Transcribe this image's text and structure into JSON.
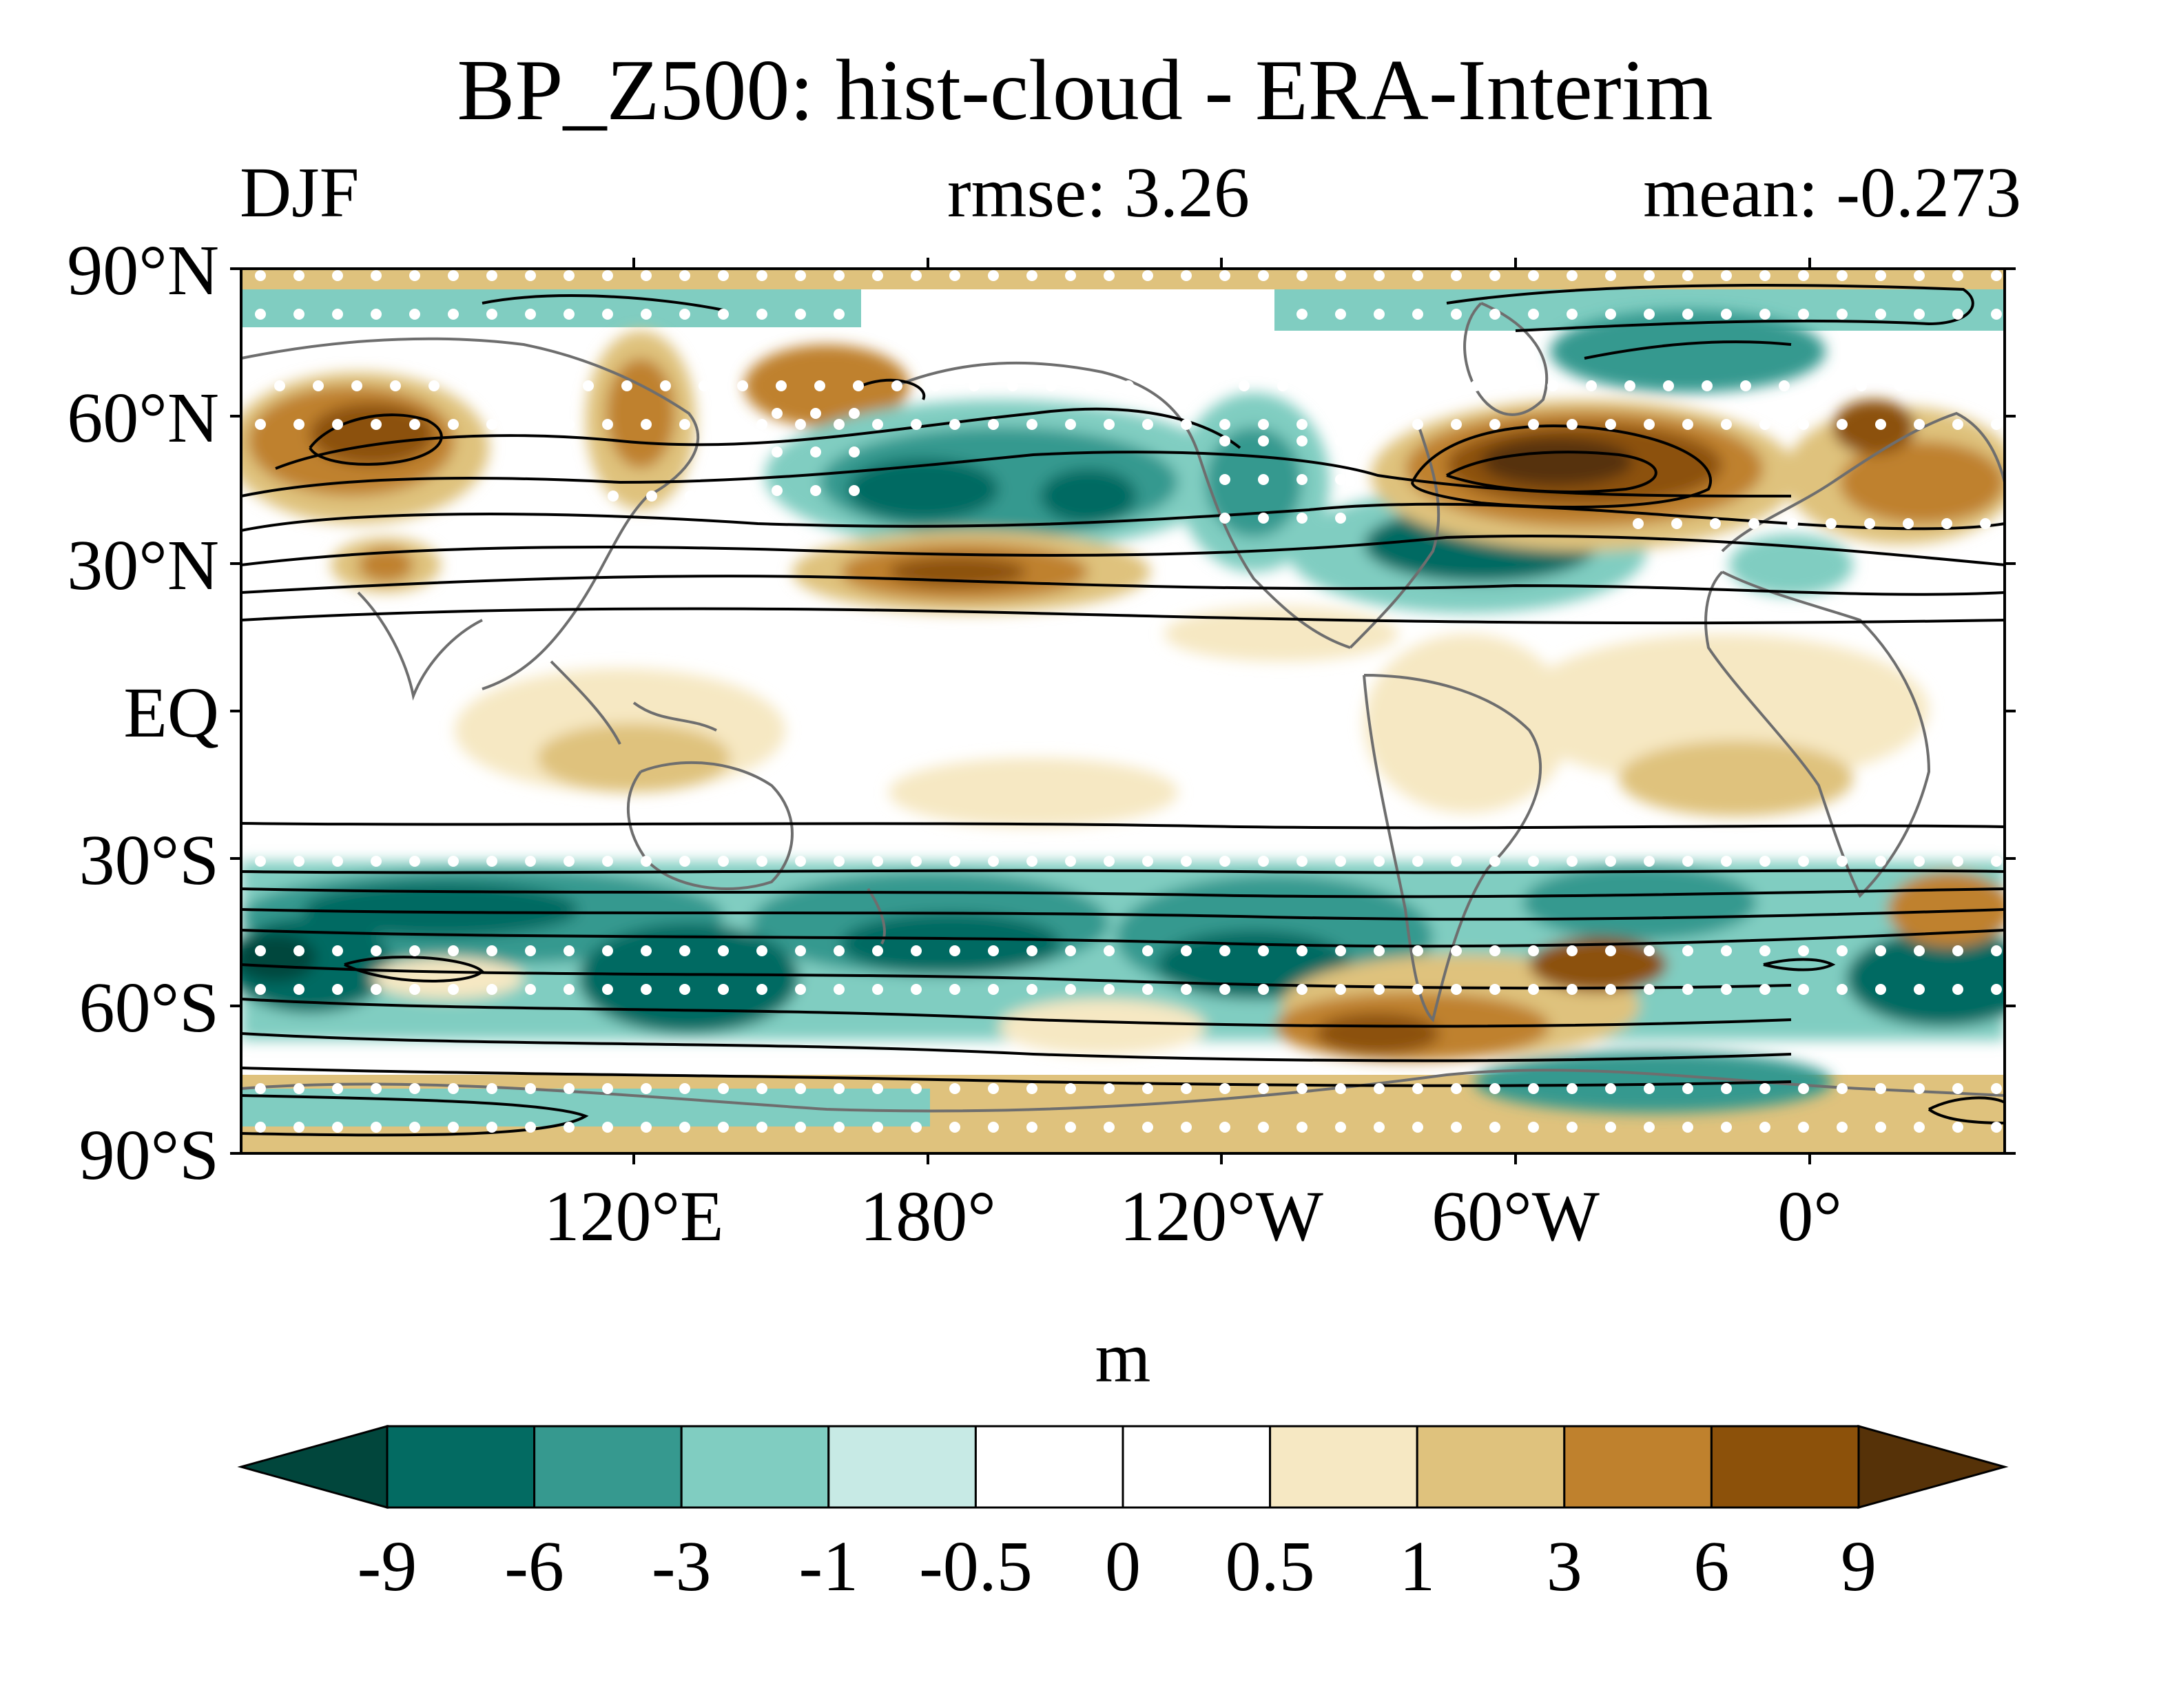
{
  "title": "BP_Z500: hist-cloud - ERA-Interim",
  "season": "DJF",
  "rmse_text": "rmse: 3.26",
  "mean_text": "mean: -0.273",
  "map": {
    "lat_labels": [
      "90°N",
      "60°N",
      "30°N",
      "EQ",
      "30°S",
      "60°S",
      "90°S"
    ],
    "lon_labels": [
      "120°E",
      "180°",
      "120°W",
      "60°W",
      "0°"
    ],
    "projection": "cylindrical equidistant, Pacific-centered",
    "stippling": "white dots mark significant regions",
    "contours": "black lines show climatology"
  },
  "colorbar": {
    "units": "m",
    "levels": [
      "-9",
      "-6",
      "-3",
      "-1",
      "-0.5",
      "0",
      "0.5",
      "1",
      "3",
      "6",
      "9"
    ],
    "colors": [
      "#01463c",
      "#036b62",
      "#36998f",
      "#80cdc1",
      "#c7eae5",
      "#ffffff",
      "#ffffff",
      "#f6e8c3",
      "#dfc27d",
      "#bf812d",
      "#8c510a",
      "#563208"
    ]
  },
  "colors": {
    "coast": "#6e6e6e",
    "contour": "#000000",
    "stipple": "#ffffff"
  }
}
